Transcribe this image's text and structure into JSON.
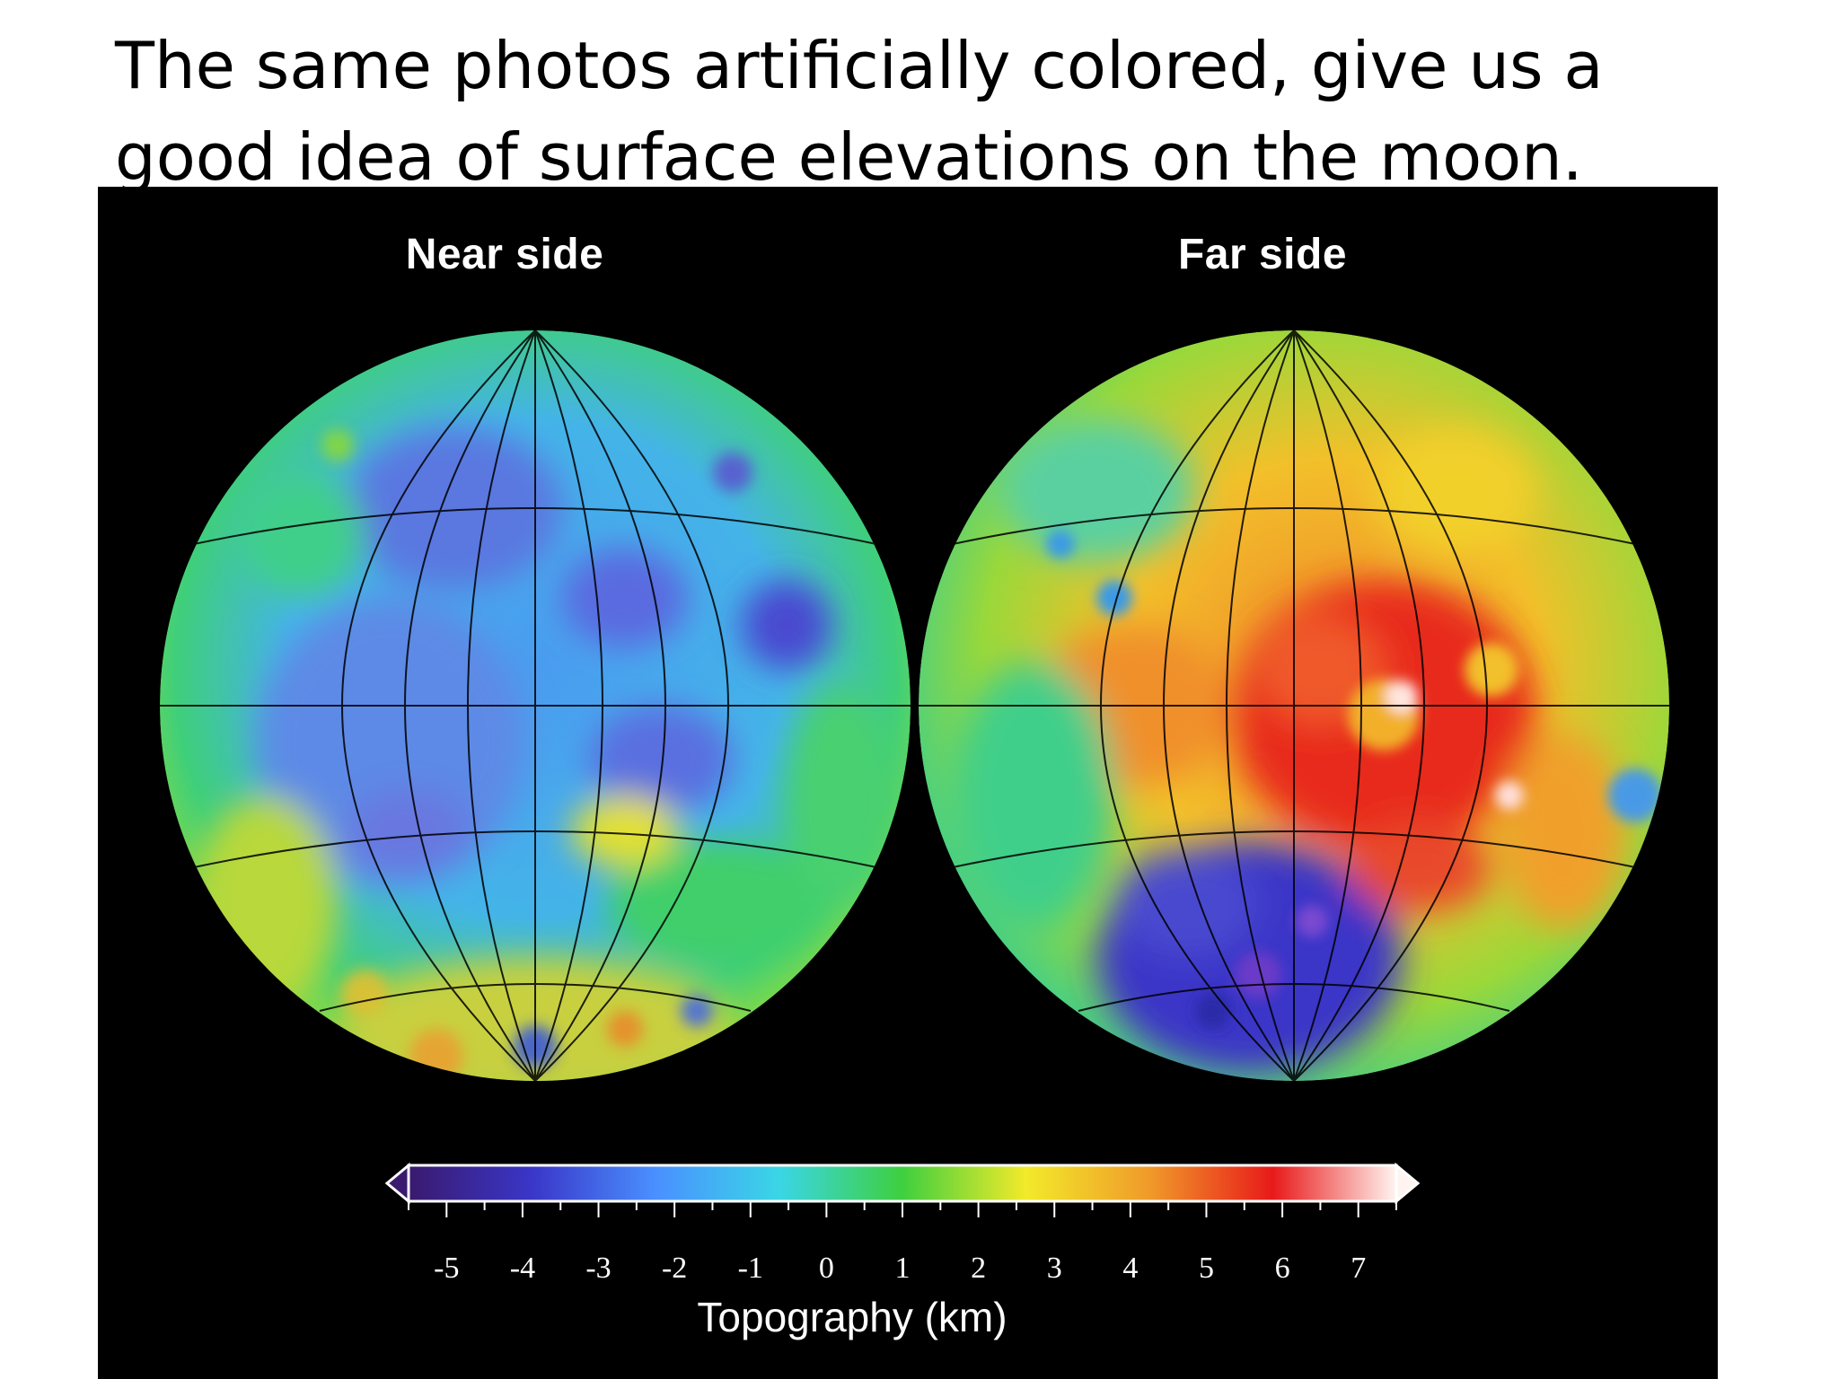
{
  "slide": {
    "title": "The same photos artificially colored, give us a good idea of surface elevations on the moon."
  },
  "figure": {
    "near_label": "Near side",
    "far_label": "Far side",
    "colorbar": {
      "caption": "Topography (km)",
      "min": -5.5,
      "max": 7.5,
      "ticks": [
        "-5",
        "-4",
        "-3",
        "-2",
        "-1",
        "0",
        "1",
        "2",
        "3",
        "4",
        "5",
        "6",
        "7"
      ],
      "colors": {
        "low": "#3a1a6e",
        "deep_blue": "#3a36c8",
        "blue": "#4a90ff",
        "cyan": "#3ad6e6",
        "green": "#3fcf3f",
        "yellow": "#f2ea2a",
        "orange": "#f09a2a",
        "red": "#e81a1a",
        "high": "#fff4f0"
      }
    },
    "background": "#000000"
  }
}
